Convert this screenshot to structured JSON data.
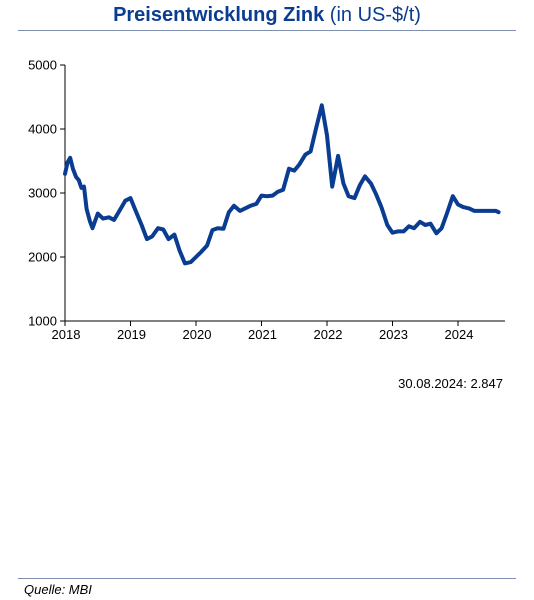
{
  "header": {
    "title_bold": "Preisentwicklung Zink",
    "title_suffix": "(in US-$/t)"
  },
  "footnote": "30.08.2024: 2.847",
  "source": "Quelle: MBI",
  "colors": {
    "line": "#0a3d91",
    "title": "#0a3d91",
    "axis": "#000000"
  },
  "chart_data": {
    "type": "line",
    "title": "Preisentwicklung Zink (in US-$/t)",
    "xlabel": "",
    "ylabel": "",
    "ylim": [
      1000,
      5000
    ],
    "xlim": [
      2018.0,
      2024.67
    ],
    "yticks": [
      "1000",
      "2000",
      "3000",
      "4000",
      "5000"
    ],
    "xticks": [
      "2018",
      "2019",
      "2020",
      "2021",
      "2022",
      "2023",
      "2024"
    ],
    "grid": false,
    "legend": "none",
    "series": [
      {
        "x": [
          2018.0,
          2018.04,
          2018.08,
          2018.12,
          2018.17,
          2018.21,
          2018.25,
          2018.29,
          2018.33,
          2018.38,
          2018.42,
          2018.5,
          2018.58,
          2018.67,
          2018.75,
          2018.83,
          2018.92,
          2019.0,
          2019.08,
          2019.17,
          2019.25,
          2019.33,
          2019.42,
          2019.5,
          2019.58,
          2019.67,
          2019.75,
          2019.83,
          2019.92,
          2020.0,
          2020.08,
          2020.17,
          2020.25,
          2020.33,
          2020.42,
          2020.5,
          2020.58,
          2020.67,
          2020.75,
          2020.83,
          2020.92,
          2021.0,
          2021.08,
          2021.17,
          2021.25,
          2021.33,
          2021.42,
          2021.5,
          2021.58,
          2021.67,
          2021.75,
          2021.83,
          2021.92,
          2022.0,
          2022.08,
          2022.17,
          2022.25,
          2022.33,
          2022.42,
          2022.5,
          2022.58,
          2022.67,
          2022.75,
          2022.83,
          2022.92,
          2023.0,
          2023.08,
          2023.17,
          2023.25,
          2023.33,
          2023.42,
          2023.5,
          2023.58,
          2023.67,
          2023.75,
          2023.83,
          2023.92,
          2024.0,
          2024.08,
          2024.17,
          2024.25,
          2024.33,
          2024.42,
          2024.5,
          2024.58,
          2024.62
        ],
        "values": [
          3300,
          3480,
          3550,
          3380,
          3250,
          3200,
          3080,
          3100,
          2750,
          2560,
          2450,
          2680,
          2600,
          2620,
          2580,
          2720,
          2880,
          2920,
          2720,
          2500,
          2280,
          2320,
          2450,
          2430,
          2280,
          2350,
          2100,
          1900,
          1920,
          2000,
          2080,
          2180,
          2420,
          2450,
          2440,
          2700,
          2800,
          2720,
          2760,
          2800,
          2830,
          2960,
          2950,
          2960,
          3020,
          3050,
          3380,
          3350,
          3450,
          3600,
          3650,
          4000,
          4370,
          3900,
          3100,
          3580,
          3150,
          2950,
          2920,
          3120,
          3260,
          3150,
          2980,
          2780,
          2500,
          2380,
          2400,
          2400,
          2480,
          2450,
          2550,
          2500,
          2520,
          2370,
          2450,
          2680,
          2950,
          2820,
          2780,
          2760,
          2720,
          2720,
          2720,
          2720,
          2720,
          2700
        ]
      }
    ]
  }
}
